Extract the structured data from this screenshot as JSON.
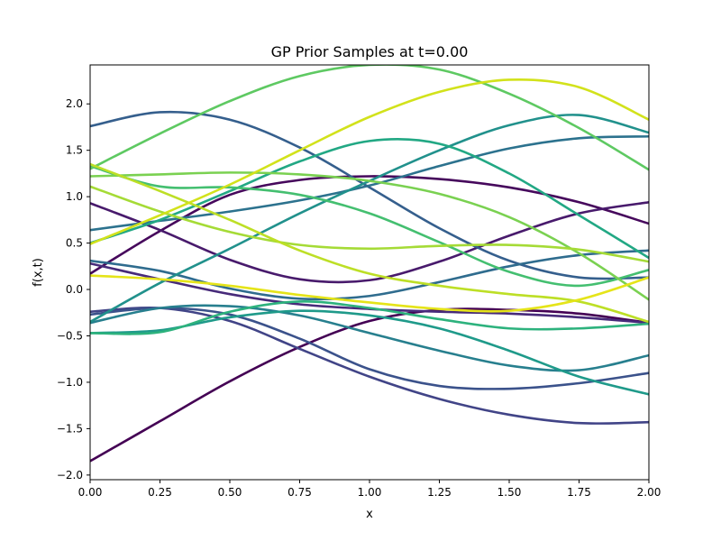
{
  "chart_data": {
    "type": "line",
    "title": "GP Prior Samples at t=0.00",
    "xlabel": "x",
    "ylabel": "f(x,t)",
    "xlim": [
      0.0,
      2.0
    ],
    "ylim": [
      -2.05,
      2.42
    ],
    "xticks": [
      "0.00",
      "0.25",
      "0.50",
      "0.75",
      "1.00",
      "1.25",
      "1.50",
      "1.75",
      "2.00"
    ],
    "xtick_values": [
      0.0,
      0.25,
      0.5,
      0.75,
      1.0,
      1.25,
      1.5,
      1.75,
      2.0
    ],
    "yticks": [
      "−2.0",
      "−1.5",
      "−1.0",
      "−0.5",
      "0.0",
      "0.5",
      "1.0",
      "1.5",
      "2.0"
    ],
    "ytick_values": [
      -2.0,
      -1.5,
      -1.0,
      -0.5,
      0.0,
      0.5,
      1.0,
      1.5,
      2.0
    ],
    "grid": false,
    "legend": "none",
    "colormap": "viridis",
    "x": [
      0.0,
      0.25,
      0.5,
      0.75,
      1.0,
      1.25,
      1.5,
      1.75,
      2.0
    ],
    "series": [
      {
        "color": "#440154",
        "values": [
          -1.85,
          -1.42,
          -0.99,
          -0.62,
          -0.34,
          -0.22,
          -0.22,
          -0.26,
          -0.36
        ]
      },
      {
        "color": "#46085c",
        "values": [
          0.17,
          0.63,
          1.02,
          1.18,
          1.22,
          1.19,
          1.1,
          0.94,
          0.71
        ]
      },
      {
        "color": "#481a6c",
        "values": [
          0.93,
          0.64,
          0.32,
          0.11,
          0.1,
          0.3,
          0.58,
          0.82,
          0.94
        ]
      },
      {
        "color": "#472a7a",
        "values": [
          0.28,
          0.11,
          -0.05,
          -0.16,
          -0.21,
          -0.24,
          -0.26,
          -0.3,
          -0.36
        ]
      },
      {
        "color": "#414487",
        "values": [
          -0.24,
          -0.2,
          -0.34,
          -0.64,
          -0.94,
          -1.18,
          -1.35,
          -1.44,
          -1.43
        ]
      },
      {
        "color": "#3b528b",
        "values": [
          -0.27,
          -0.2,
          -0.27,
          -0.53,
          -0.86,
          -1.04,
          -1.07,
          -1.01,
          -0.9
        ]
      },
      {
        "color": "#355f8d",
        "values": [
          1.76,
          1.91,
          1.83,
          1.53,
          1.1,
          0.66,
          0.31,
          0.13,
          0.13
        ]
      },
      {
        "color": "#2f6c8e",
        "values": [
          0.31,
          0.2,
          0.01,
          -0.1,
          -0.07,
          0.08,
          0.25,
          0.37,
          0.42
        ]
      },
      {
        "color": "#2c728e",
        "values": [
          0.64,
          0.74,
          0.84,
          0.96,
          1.12,
          1.33,
          1.52,
          1.63,
          1.65
        ]
      },
      {
        "color": "#277f8e",
        "values": [
          -0.36,
          -0.2,
          -0.18,
          -0.28,
          -0.47,
          -0.66,
          -0.82,
          -0.87,
          -0.71
        ]
      },
      {
        "color": "#21918c",
        "values": [
          -0.35,
          0.07,
          0.44,
          0.82,
          1.17,
          1.5,
          1.77,
          1.88,
          1.69
        ]
      },
      {
        "color": "#1f9a8a",
        "values": [
          -0.47,
          -0.44,
          -0.3,
          -0.23,
          -0.28,
          -0.42,
          -0.66,
          -0.94,
          -1.13
        ]
      },
      {
        "color": "#22a884",
        "values": [
          0.5,
          0.75,
          1.06,
          1.38,
          1.6,
          1.57,
          1.25,
          0.8,
          0.34
        ]
      },
      {
        "color": "#2db27d",
        "values": [
          -0.47,
          -0.46,
          -0.24,
          -0.13,
          -0.2,
          -0.32,
          -0.42,
          -0.42,
          -0.37
        ]
      },
      {
        "color": "#44bf70",
        "values": [
          1.33,
          1.11,
          1.1,
          1.02,
          0.82,
          0.51,
          0.19,
          0.04,
          0.21
        ]
      },
      {
        "color": "#5ec962",
        "values": [
          1.3,
          1.68,
          2.03,
          2.3,
          2.42,
          2.37,
          2.11,
          1.74,
          1.29
        ]
      },
      {
        "color": "#7ad151",
        "values": [
          1.22,
          1.24,
          1.26,
          1.24,
          1.17,
          1.03,
          0.78,
          0.39,
          -0.11
        ]
      },
      {
        "color": "#a5db36",
        "values": [
          1.11,
          0.84,
          0.62,
          0.48,
          0.44,
          0.47,
          0.48,
          0.43,
          0.3
        ]
      },
      {
        "color": "#bddf26",
        "values": [
          1.35,
          1.06,
          0.75,
          0.42,
          0.17,
          0.04,
          -0.05,
          -0.13,
          -0.35
        ]
      },
      {
        "color": "#d2e21b",
        "values": [
          0.49,
          0.8,
          1.13,
          1.5,
          1.86,
          2.13,
          2.26,
          2.18,
          1.83
        ]
      },
      {
        "color": "#e5e419",
        "values": [
          0.15,
          0.11,
          0.04,
          -0.06,
          -0.14,
          -0.21,
          -0.23,
          -0.11,
          0.13
        ]
      }
    ]
  }
}
